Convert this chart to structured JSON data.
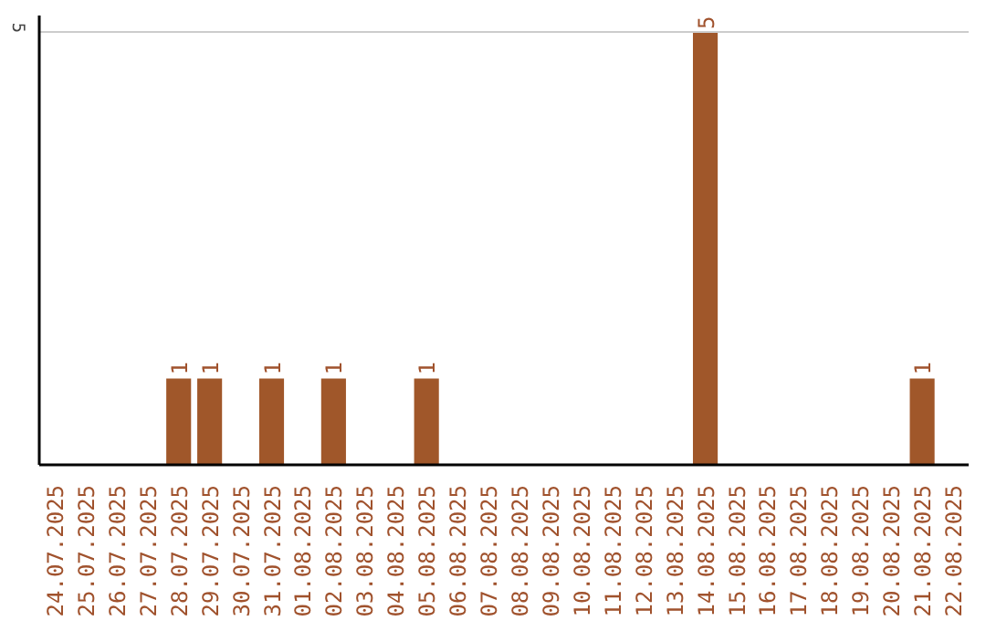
{
  "chart_data": {
    "type": "bar",
    "categories": [
      "24.07.2025",
      "25.07.2025",
      "26.07.2025",
      "27.07.2025",
      "28.07.2025",
      "29.07.2025",
      "30.07.2025",
      "31.07.2025",
      "01.08.2025",
      "02.08.2025",
      "03.08.2025",
      "04.08.2025",
      "05.08.2025",
      "06.08.2025",
      "07.08.2025",
      "08.08.2025",
      "09.08.2025",
      "10.08.2025",
      "11.08.2025",
      "12.08.2025",
      "13.08.2025",
      "14.08.2025",
      "15.08.2025",
      "16.08.2025",
      "17.08.2025",
      "18.08.2025",
      "19.08.2025",
      "20.08.2025",
      "21.08.2025",
      "22.08.2025"
    ],
    "values": [
      0,
      0,
      0,
      0,
      1,
      1,
      0,
      1,
      0,
      1,
      0,
      0,
      1,
      0,
      0,
      0,
      0,
      0,
      0,
      0,
      0,
      5,
      0,
      0,
      0,
      0,
      0,
      0,
      1,
      0
    ],
    "value_labels": [
      null,
      null,
      null,
      null,
      "1",
      "1",
      null,
      "1",
      null,
      "1",
      null,
      null,
      "1",
      null,
      null,
      null,
      null,
      null,
      null,
      null,
      null,
      "5",
      null,
      null,
      null,
      null,
      null,
      null,
      "1",
      null
    ],
    "color": "#a0572a",
    "ylim": [
      0,
      5.2
    ],
    "yticks": [
      5
    ],
    "grid": "y"
  }
}
